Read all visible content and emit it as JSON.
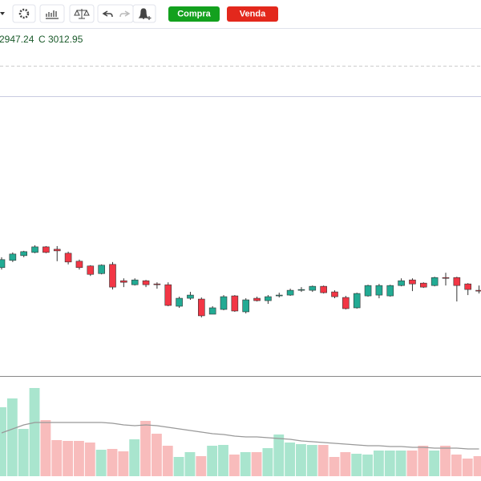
{
  "toolbar": {
    "buy": "Compra",
    "sell": "Venda"
  },
  "ohlc_text": [
    "2947.24",
    "C 3012.95"
  ],
  "chart_data": {
    "type": "candlestick",
    "open": [
      3072,
      3090,
      3102,
      3110,
      3124,
      3118,
      3108,
      3088,
      3076,
      3057,
      3080,
      3039,
      3029,
      3039,
      3031,
      3029,
      2975,
      2995,
      2993,
      2955,
      2967,
      3001,
      2961,
      2995,
      2989,
      3001,
      3003,
      3015,
      3015,
      3025,
      3011,
      2997,
      2971,
      3001,
      3003,
      3001,
      3027,
      3041,
      3033,
      3027,
      3047,
      3047,
      3031,
      3015
    ],
    "high": [
      3098,
      3110,
      3114,
      3128,
      3126,
      3126,
      3112,
      3092,
      3078,
      3080,
      3086,
      3045,
      3045,
      3041,
      3035,
      3035,
      2999,
      3011,
      2997,
      2975,
      3003,
      3003,
      2995,
      2999,
      3003,
      3009,
      3019,
      3023,
      3027,
      3027,
      3015,
      3001,
      3009,
      3029,
      3031,
      3029,
      3045,
      3045,
      3035,
      3049,
      3059,
      3049,
      3033,
      3027
    ],
    "low": [
      3067,
      3086,
      3098,
      3108,
      3108,
      3088,
      3080,
      3067,
      3051,
      3055,
      3017,
      3023,
      3027,
      3023,
      3019,
      2975,
      2971,
      2991,
      2947,
      2955,
      2965,
      2961,
      2957,
      2987,
      2981,
      2997,
      3001,
      3011,
      3011,
      3007,
      2995,
      2967,
      2969,
      2999,
      2995,
      2999,
      3025,
      3013,
      3021,
      3025,
      3027,
      2987,
      3003,
      3007
    ],
    "close": [
      3092,
      3106,
      3112,
      3124,
      3110,
      3114,
      3086,
      3072,
      3055,
      3078,
      3023,
      3035,
      3041,
      3029,
      3029,
      2977,
      2995,
      3003,
      2951,
      2971,
      2999,
      2963,
      2991,
      2989,
      2999,
      3003,
      3015,
      3017,
      3025,
      3009,
      2999,
      2969,
      3007,
      3027,
      3027,
      3027,
      3039,
      3031,
      3023,
      3047,
      3045,
      3027,
      3017,
      3012.95
    ],
    "volume": [
      86,
      97,
      59,
      110,
      70,
      45,
      44,
      44,
      42,
      33,
      34,
      31,
      46,
      69,
      53,
      38,
      24,
      30,
      25,
      38,
      39,
      27,
      30,
      30,
      35,
      52,
      42,
      40,
      39,
      39,
      24,
      30,
      28,
      27,
      32,
      32,
      32,
      32,
      38,
      32,
      38,
      27,
      22,
      25
    ],
    "volume_ma": [
      54,
      59,
      64,
      67,
      67,
      67,
      67,
      67,
      67,
      67,
      66,
      64,
      63,
      64,
      63,
      61,
      59,
      57,
      55,
      53,
      52,
      50,
      49,
      49,
      48,
      47,
      46,
      44,
      43,
      42,
      41,
      40,
      39,
      38,
      38,
      37,
      37,
      36,
      36,
      35,
      35,
      35,
      34,
      34
    ],
    "ylim": [
      2800,
      3500
    ],
    "volume_ylim": [
      0,
      124
    ],
    "up_color": "#22ab94",
    "down_color": "#f23645",
    "volume_up_color": "#a9e5ce",
    "volume_down_color": "#f8bcbc",
    "ma_color": "#999999"
  }
}
